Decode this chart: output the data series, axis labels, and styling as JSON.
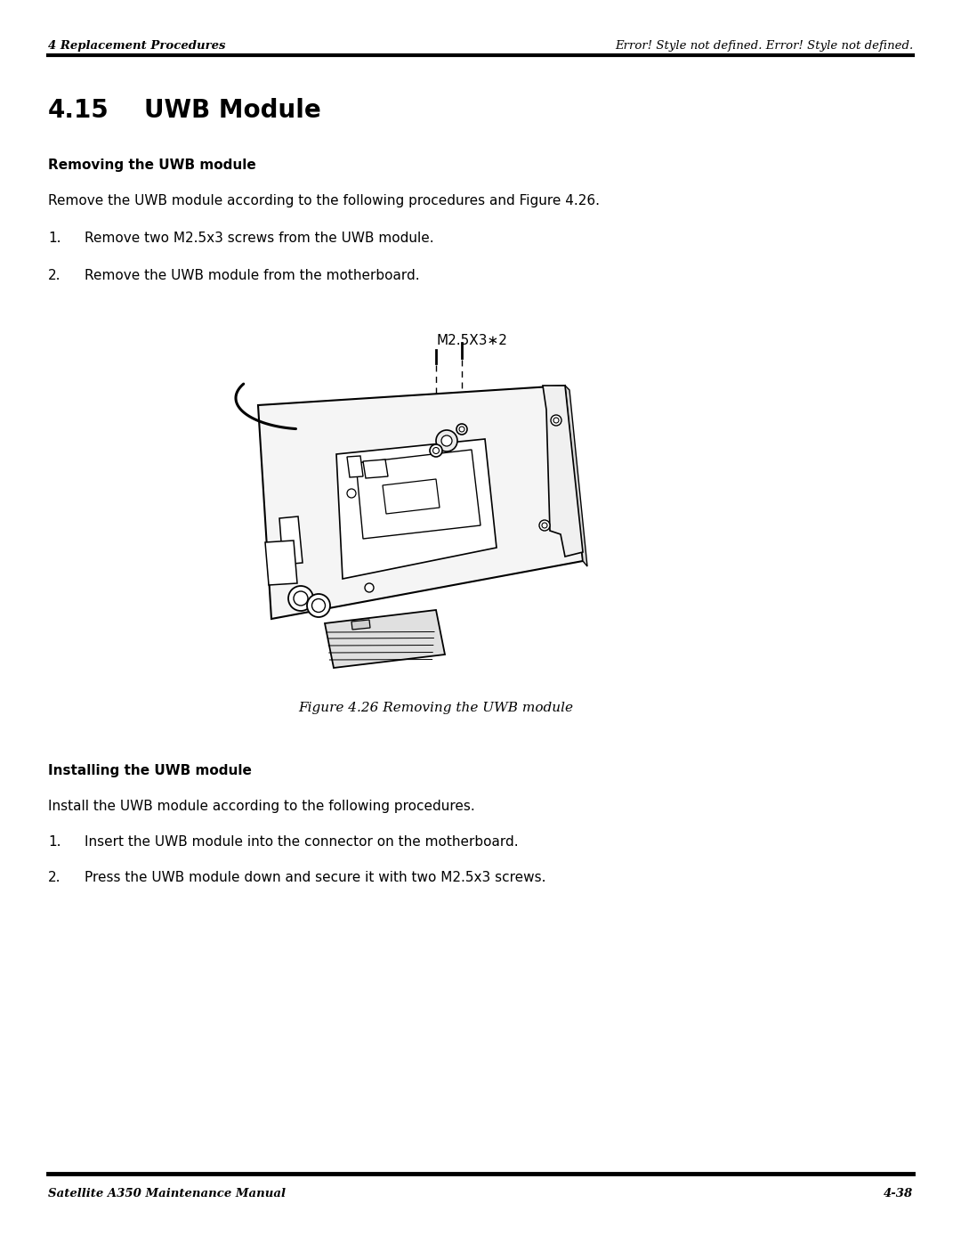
{
  "bg_color": "#ffffff",
  "header_left": "4 Replacement Procedures",
  "header_right": "Error! Style not defined. Error! Style not defined.",
  "footer_left": "Satellite A350 Maintenance Manual",
  "footer_right": "4-38",
  "section_title": "4.15",
  "section_title2": "UWB Module",
  "removing_heading": "Removing the UWB module",
  "removing_intro": "Remove the UWB module according to the following procedures and Figure 4.26.",
  "removing_steps": [
    "Remove two M2.5x3 screws from the UWB module.",
    "Remove the UWB module from the motherboard."
  ],
  "figure_label": "M2.5X3∗2",
  "figure_caption": "Figure 4.26 Removing the UWB module",
  "installing_heading": "Installing the UWB module",
  "installing_intro": "Install the UWB module according to the following procedures.",
  "installing_steps": [
    "Insert the UWB module into the connector on the motherboard.",
    "Press the UWB module down and secure it with two M2.5x3 screws."
  ]
}
